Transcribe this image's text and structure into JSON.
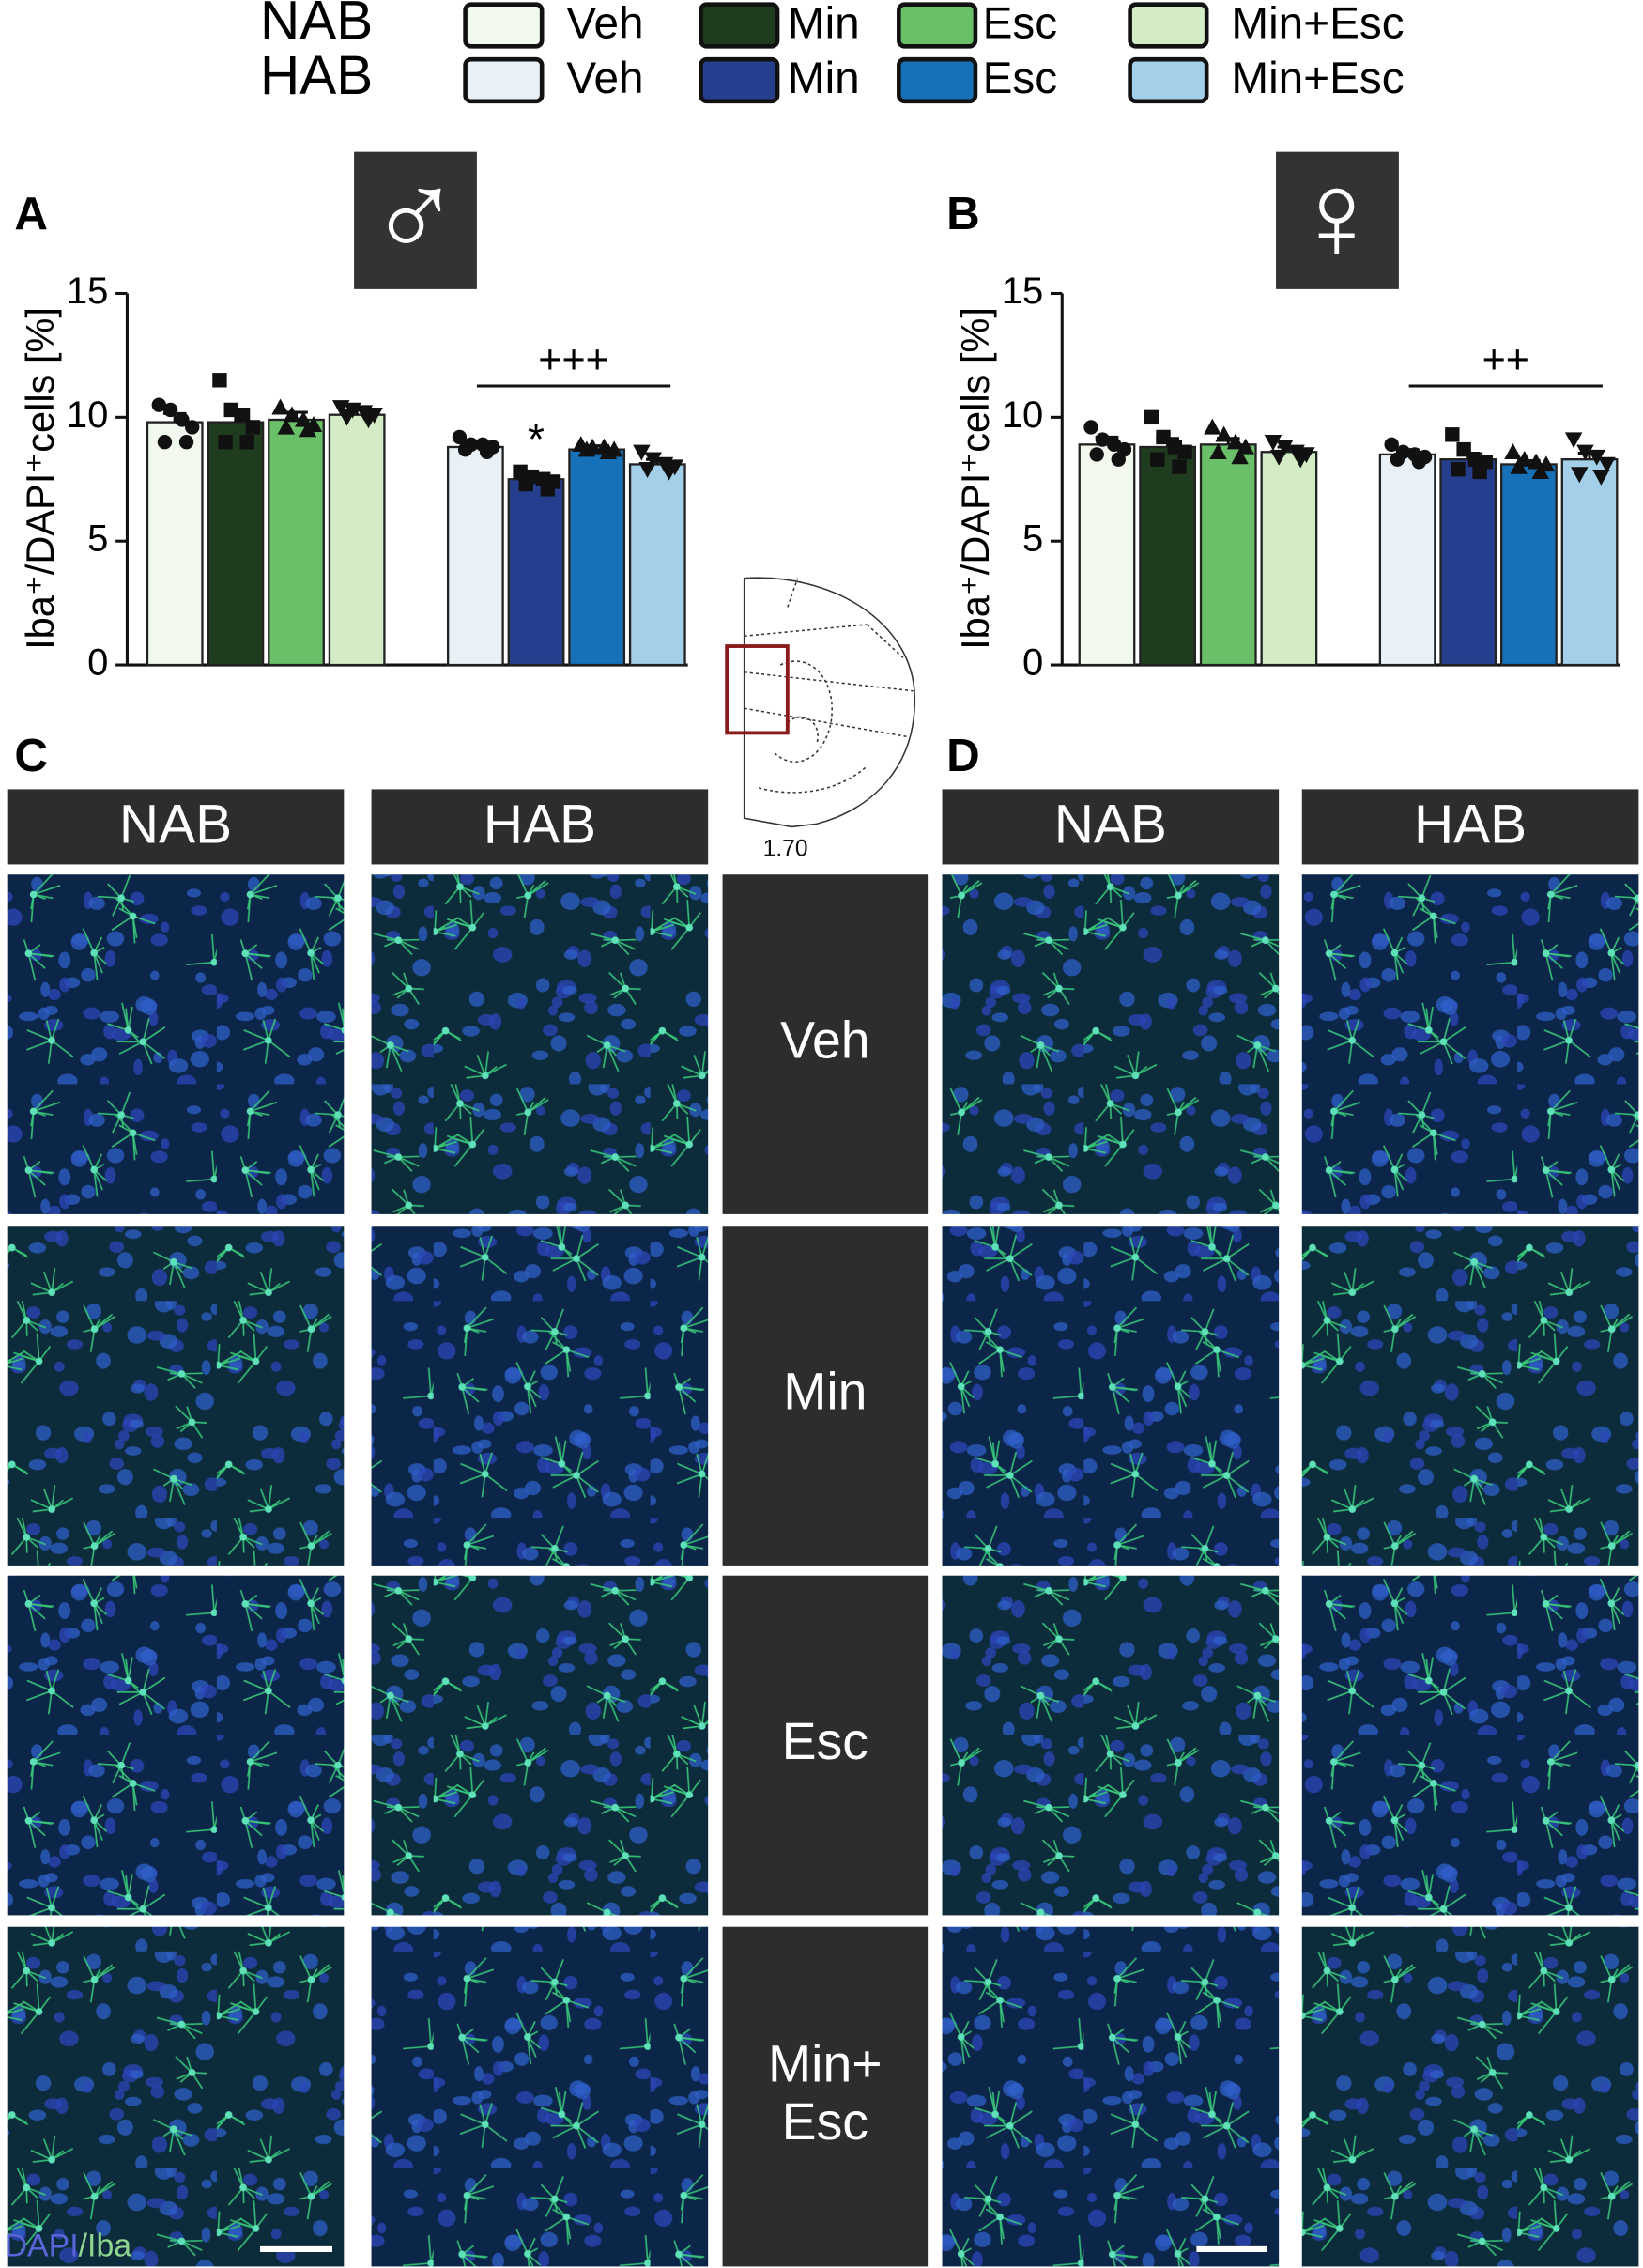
{
  "legend": {
    "rows": [
      {
        "label": "NAB",
        "entries": [
          {
            "name": "Veh",
            "color": "#f1f9ee"
          },
          {
            "name": "Min",
            "color": "#1f3d1e"
          },
          {
            "name": "Esc",
            "color": "#6abf69"
          },
          {
            "name": "Min+Esc",
            "color": "#d3ecc6"
          }
        ]
      },
      {
        "label": "HAB",
        "entries": [
          {
            "name": "Veh",
            "color": "#e9f1f6"
          },
          {
            "name": "Min",
            "color": "#253f8e"
          },
          {
            "name": "Esc",
            "color": "#1671b8"
          },
          {
            "name": "Min+Esc",
            "color": "#a3cfe9"
          }
        ]
      }
    ]
  },
  "chart_data": [
    {
      "type": "bar",
      "panel": "A",
      "sex": "♂",
      "ylabel": "Iba⁺/DAPI⁺cells [%]",
      "ylim": [
        0,
        15
      ],
      "yticks": [
        0,
        5,
        10,
        15
      ],
      "markers": [
        "circle",
        "square",
        "triangle",
        "triangle-down"
      ],
      "groups": [
        {
          "values": [
            9.8,
            9.8,
            9.9,
            10.1
          ],
          "errors": [
            0.35,
            0.45,
            0.3,
            0.2
          ],
          "points": [
            [
              10.5,
              10.3,
              9.9,
              9.6,
              9.0,
              9.0
            ],
            [
              11.5,
              10.3,
              10.1,
              9.6,
              9.0,
              9.0
            ],
            [
              10.4,
              10.1,
              9.9,
              9.7,
              9.6,
              9.5
            ],
            [
              10.4,
              10.3,
              10.2,
              10.1,
              10.0,
              9.9
            ]
          ]
        },
        {
          "values": [
            8.8,
            7.5,
            8.7,
            8.1
          ],
          "errors": [
            0.2,
            0.2,
            0.15,
            0.2
          ],
          "points": [
            [
              9.2,
              8.9,
              8.9,
              8.8,
              8.7,
              8.6
            ],
            [
              7.8,
              7.6,
              7.5,
              7.4,
              7.3,
              7.1
            ],
            [
              8.9,
              8.8,
              8.8,
              8.7,
              8.7,
              8.6
            ],
            [
              8.6,
              8.3,
              8.1,
              8.0,
              7.9,
              7.8
            ]
          ],
          "bracket": "+++",
          "stars": [
            null,
            "*",
            null,
            null
          ]
        }
      ]
    },
    {
      "type": "bar",
      "panel": "B",
      "sex": "♀",
      "ylabel": "Iba⁺/DAPI⁺cells [%]",
      "ylim": [
        0,
        15
      ],
      "yticks": [
        0,
        5,
        10,
        15
      ],
      "markers": [
        "circle",
        "square",
        "triangle",
        "triangle-down"
      ],
      "groups": [
        {
          "values": [
            8.9,
            8.8,
            8.9,
            8.6
          ],
          "errors": [
            0.3,
            0.35,
            0.25,
            0.2
          ],
          "points": [
            [
              9.6,
              9.1,
              8.9,
              8.7,
              8.5,
              8.3
            ],
            [
              10.0,
              9.2,
              8.8,
              8.6,
              8.3,
              8.0
            ],
            [
              9.6,
              9.3,
              9.0,
              8.8,
              8.6,
              8.4
            ],
            [
              9.0,
              8.8,
              8.6,
              8.5,
              8.4,
              8.3
            ]
          ]
        },
        {
          "values": [
            8.5,
            8.3,
            8.1,
            8.3
          ],
          "errors": [
            0.2,
            0.25,
            0.15,
            0.25
          ],
          "points": [
            [
              8.9,
              8.6,
              8.5,
              8.4,
              8.3,
              8.2
            ],
            [
              9.3,
              8.7,
              8.3,
              8.2,
              7.9,
              7.8
            ],
            [
              8.6,
              8.3,
              8.2,
              8.1,
              8.0,
              7.8
            ],
            [
              9.1,
              8.6,
              8.4,
              8.1,
              7.7,
              7.6
            ]
          ],
          "bracket": "++"
        }
      ]
    }
  ],
  "image_panels": [
    {
      "letter": "C",
      "columns": [
        "NAB",
        "HAB"
      ]
    },
    {
      "letter": "D",
      "columns": [
        "NAB",
        "HAB"
      ]
    }
  ],
  "treatments": [
    [
      "Veh"
    ],
    [
      "Min"
    ],
    [
      "Esc"
    ],
    [
      "Min+",
      "Esc"
    ]
  ],
  "atlas_label": "1.70",
  "stain": [
    "DAPI",
    "/Iba"
  ]
}
